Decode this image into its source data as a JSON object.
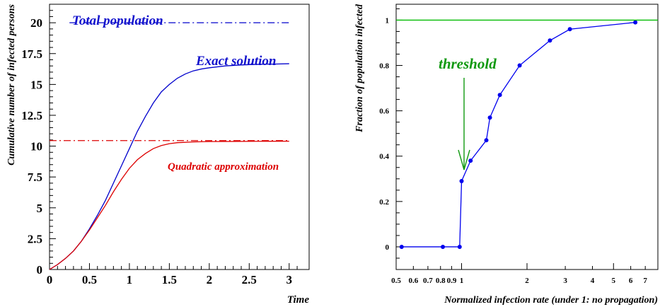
{
  "chart_data": [
    {
      "type": "line",
      "title": "",
      "xlabel": "Time",
      "ylabel": "Cumulative number of infected persons",
      "xlim": [
        0,
        3.25
      ],
      "ylim": [
        0,
        21.5
      ],
      "x_ticks": [
        "0",
        "0.5",
        "1",
        "1.5",
        "2",
        "2.5",
        "3"
      ],
      "y_ticks": [
        "0",
        "2.5",
        "5",
        "7.5",
        "10",
        "12.5",
        "15",
        "17.5",
        "20"
      ],
      "series": [
        {
          "name": "Exact solution",
          "color": "#0000cc",
          "style": "solid",
          "x": [
            0,
            0.1,
            0.2,
            0.3,
            0.4,
            0.5,
            0.6,
            0.7,
            0.8,
            0.9,
            1.0,
            1.1,
            1.2,
            1.3,
            1.4,
            1.5,
            1.6,
            1.7,
            1.8,
            1.9,
            2.0,
            2.2,
            2.4,
            2.6,
            2.8,
            3.0
          ],
          "y": [
            0,
            0.4,
            0.9,
            1.5,
            2.3,
            3.3,
            4.4,
            5.6,
            7.0,
            8.4,
            9.8,
            11.2,
            12.4,
            13.5,
            14.4,
            15.0,
            15.5,
            15.85,
            16.1,
            16.25,
            16.35,
            16.5,
            16.58,
            16.63,
            16.65,
            16.68
          ]
        },
        {
          "name": "Quadratic approximation",
          "color": "#dd0000",
          "style": "solid",
          "x": [
            0,
            0.1,
            0.2,
            0.3,
            0.4,
            0.5,
            0.6,
            0.7,
            0.8,
            0.9,
            1.0,
            1.1,
            1.2,
            1.3,
            1.4,
            1.5,
            1.6,
            1.8,
            2.0,
            2.3,
            2.6,
            3.0
          ],
          "y": [
            0,
            0.4,
            0.9,
            1.5,
            2.3,
            3.2,
            4.2,
            5.2,
            6.3,
            7.3,
            8.2,
            8.9,
            9.4,
            9.8,
            10.05,
            10.2,
            10.28,
            10.34,
            10.37,
            10.38,
            10.39,
            10.4
          ]
        },
        {
          "name": "Total population",
          "color": "#0000cc",
          "style": "dashdot",
          "x": [
            0.25,
            3.0
          ],
          "y": [
            20,
            20
          ]
        },
        {
          "name": "",
          "color": "#dd0000",
          "style": "dashdot",
          "x": [
            0,
            3.0
          ],
          "y": [
            10.45,
            10.45
          ]
        }
      ],
      "annotations": [
        "Total population",
        "Exact solution",
        "Quadratic approximation"
      ]
    },
    {
      "type": "line",
      "title": "",
      "xlabel": "Normalized infection rate (under 1: no propagation)",
      "ylabel": "Fraction of population infected",
      "x_scale": "log",
      "xlim": [
        0.5,
        8
      ],
      "ylim": [
        -0.1,
        1.07
      ],
      "x_ticks": [
        "0.5",
        "0.6",
        "0.7",
        "0.8",
        "0.9",
        "1",
        "2",
        "3",
        "4",
        "5",
        "6",
        "7"
      ],
      "y_ticks": [
        "0",
        "0.2",
        "0.4",
        "0.6",
        "0.8",
        "1"
      ],
      "series": [
        {
          "name": "",
          "color": "#0000ee",
          "style": "solid-markers",
          "x": [
            0.53,
            0.82,
            0.98,
            1.0,
            1.1,
            1.3,
            1.35,
            1.5,
            1.85,
            2.55,
            3.15,
            6.3
          ],
          "y": [
            0,
            0,
            0,
            0.29,
            0.38,
            0.47,
            0.57,
            0.67,
            0.8,
            0.91,
            0.96,
            0.99
          ]
        },
        {
          "name": "",
          "color": "#00bb00",
          "style": "solid",
          "x": [
            0.5,
            8
          ],
          "y": [
            1,
            1
          ]
        }
      ],
      "annotations": [
        "threshold"
      ]
    }
  ]
}
